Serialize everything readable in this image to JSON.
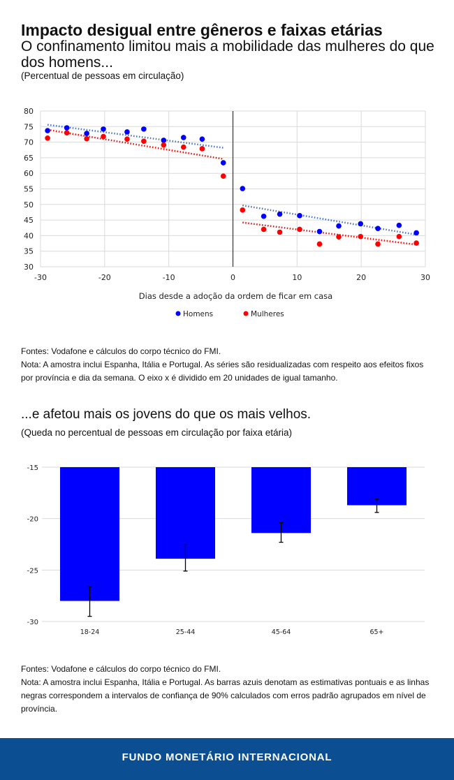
{
  "title": "Impacto desigual entre gêneros e faixas etárias",
  "subtitle": "O confinamento limitou mais a mobilidade das mulheres do que dos homens...",
  "note1": "(Percentual de pessoas em circulação)",
  "source1": {
    "line1": "Fontes: Vodafone e cálculos do corpo técnico do FMI.",
    "line2": "Nota: A amostra inclui Espanha, Itália e Portugal. As séries são residualizadas com respeito aos efeitos fixos por província e dia da semana. O eixo x é dividido em 20 unidades de igual tamanho."
  },
  "subtitle2": "...e afetou mais os jovens do que os mais velhos.",
  "note2": "(Queda no percentual de pessoas em circulação por faixa etária)",
  "source2": {
    "line1": "Fontes: Vodafone e cálculos do corpo técnico do FMI.",
    "line2": "Nota: A amostra inclui Espanha, Itália e Portugal. As barras azuis denotam as estimativas pontuais e as linhas negras correspondem a intervalos de confiança de 90% calculados com erros padrão agrupados em nível de província."
  },
  "footer": "FUNDO MONETÁRIO INTERNACIONAL",
  "chart_data": [
    {
      "type": "scatter",
      "xlabel": "Dias desde a adoção da ordem de ficar em casa",
      "ylabel": "",
      "xlim": [
        -30,
        30
      ],
      "ylim": [
        30,
        80
      ],
      "xticks": [
        -30,
        -20,
        -10,
        0,
        10,
        20,
        30
      ],
      "yticks": [
        30,
        35,
        40,
        45,
        50,
        55,
        60,
        65,
        70,
        75,
        80
      ],
      "grid": true,
      "legend": "bottom",
      "x": [
        -28.9,
        -25.9,
        -22.8,
        -20.2,
        -16.5,
        -13.9,
        -10.8,
        -7.7,
        -4.8,
        -1.5,
        1.5,
        4.8,
        7.3,
        10.4,
        13.5,
        16.5,
        19.9,
        22.6,
        25.9,
        28.6
      ],
      "series": [
        {
          "name": "Homens",
          "color": "#0000ff",
          "values": [
            73.7,
            74.6,
            72.8,
            74.2,
            73.3,
            74.2,
            70.6,
            71.5,
            71.0,
            63.4,
            55.1,
            46.2,
            46.9,
            46.4,
            41.3,
            43.1,
            43.8,
            42.3,
            43.3,
            40.9
          ],
          "trend": [
            [
              [
                -28.9,
                75.6
              ],
              [
                -1.5,
                68.2
              ]
            ],
            [
              [
                1.5,
                49.7
              ],
              [
                28.6,
                40.3
              ]
            ]
          ],
          "trend_color": "#4472c4"
        },
        {
          "name": "Mulheres",
          "color": "#ff0000",
          "values": [
            71.3,
            73.0,
            71.1,
            71.8,
            71.0,
            70.3,
            69.1,
            68.4,
            67.9,
            59.1,
            48.2,
            42.0,
            41.1,
            42.0,
            37.3,
            39.6,
            39.7,
            37.3,
            39.7,
            37.6
          ],
          "trend": [
            [
              [
                -28.9,
                74.0
              ],
              [
                -1.5,
                64.6
              ]
            ],
            [
              [
                1.5,
                44.2
              ],
              [
                28.6,
                37.1
              ]
            ]
          ],
          "trend_color": "#ff0000"
        }
      ]
    },
    {
      "type": "bar",
      "categories": [
        "18-24",
        "25-44",
        "45-64",
        "65+"
      ],
      "values": [
        -28.0,
        -23.9,
        -21.4,
        -18.7
      ],
      "error_low": [
        -29.5,
        -25.1,
        -22.3,
        -19.4
      ],
      "error_high": [
        -26.6,
        -22.5,
        -20.4,
        -18.1
      ],
      "ylim": [
        -30,
        -15
      ],
      "yticks": [
        -15,
        -20,
        -25,
        -30
      ],
      "grid": true,
      "bar_color": "#0000ff"
    }
  ]
}
